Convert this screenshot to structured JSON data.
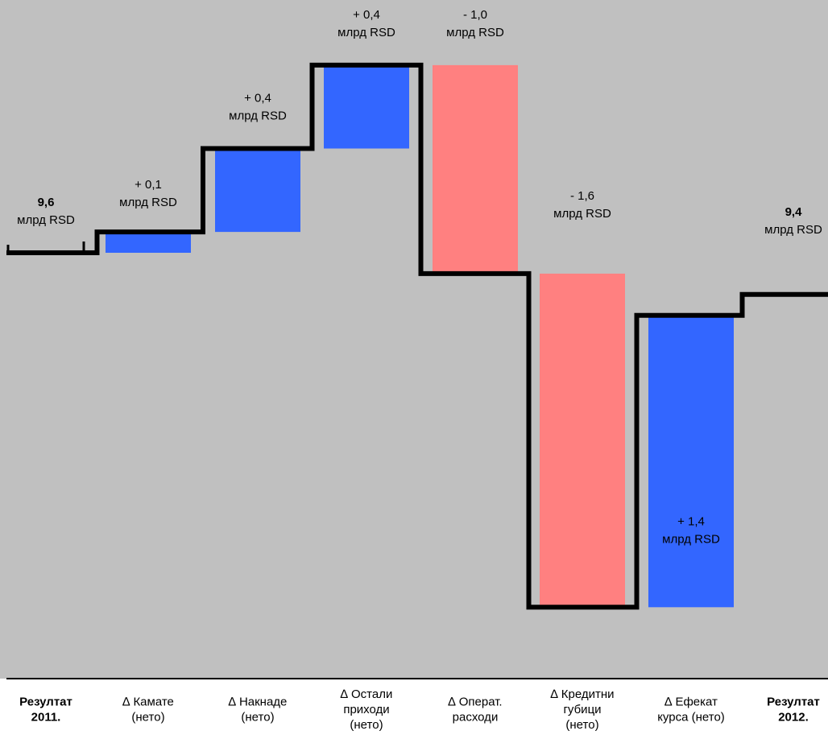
{
  "chart_data": {
    "type": "waterfall",
    "colors": {
      "background": "#c0c0c0",
      "increase": "#3366ff",
      "decrease": "#ff8080",
      "step_line": "#000000",
      "axis": "#000000"
    },
    "categories": [
      {
        "lines": [
          "Резултат",
          "2011."
        ],
        "bold": true
      },
      {
        "lines": [
          "∆ Камате",
          "(нето)"
        ],
        "bold": false
      },
      {
        "lines": [
          "∆ Накнаде",
          "(нето)"
        ],
        "bold": false
      },
      {
        "lines": [
          "∆ Остали",
          "приходи",
          "(нето)"
        ],
        "bold": false
      },
      {
        "lines": [
          "∆ Операт.",
          "расходи"
        ],
        "bold": false
      },
      {
        "lines": [
          "∆ Кредитни",
          "губици",
          "(нето)"
        ],
        "bold": false
      },
      {
        "lines": [
          "∆ Ефекат",
          "курса (нето)"
        ],
        "bold": false
      },
      {
        "lines": [
          "Резултат",
          "2012."
        ],
        "bold": true
      }
    ],
    "values": [
      9.6,
      0.1,
      0.4,
      0.4,
      -1.0,
      -1.6,
      1.4,
      9.4
    ],
    "kinds": [
      "total",
      "delta",
      "delta",
      "delta",
      "delta",
      "delta",
      "delta",
      "total"
    ],
    "value_labels": [
      {
        "value": "9,6",
        "unit": "млрд RSD",
        "bold": true
      },
      {
        "value": "+  0,1",
        "unit": "млрд RSD",
        "bold": false
      },
      {
        "value": "+  0,4",
        "unit": "млрд RSD",
        "bold": false
      },
      {
        "value": "+  0,4",
        "unit": "млрд RSD",
        "bold": false
      },
      {
        "value": "-  1,0",
        "unit": "млрд RSD",
        "bold": false
      },
      {
        "value": "-  1,6",
        "unit": "млрд RSD",
        "bold": false
      },
      {
        "value": "+  1,4",
        "unit": "млрд RSD",
        "bold": false
      },
      {
        "value": "9,4",
        "unit": "млрд RSD",
        "bold": true
      }
    ]
  }
}
